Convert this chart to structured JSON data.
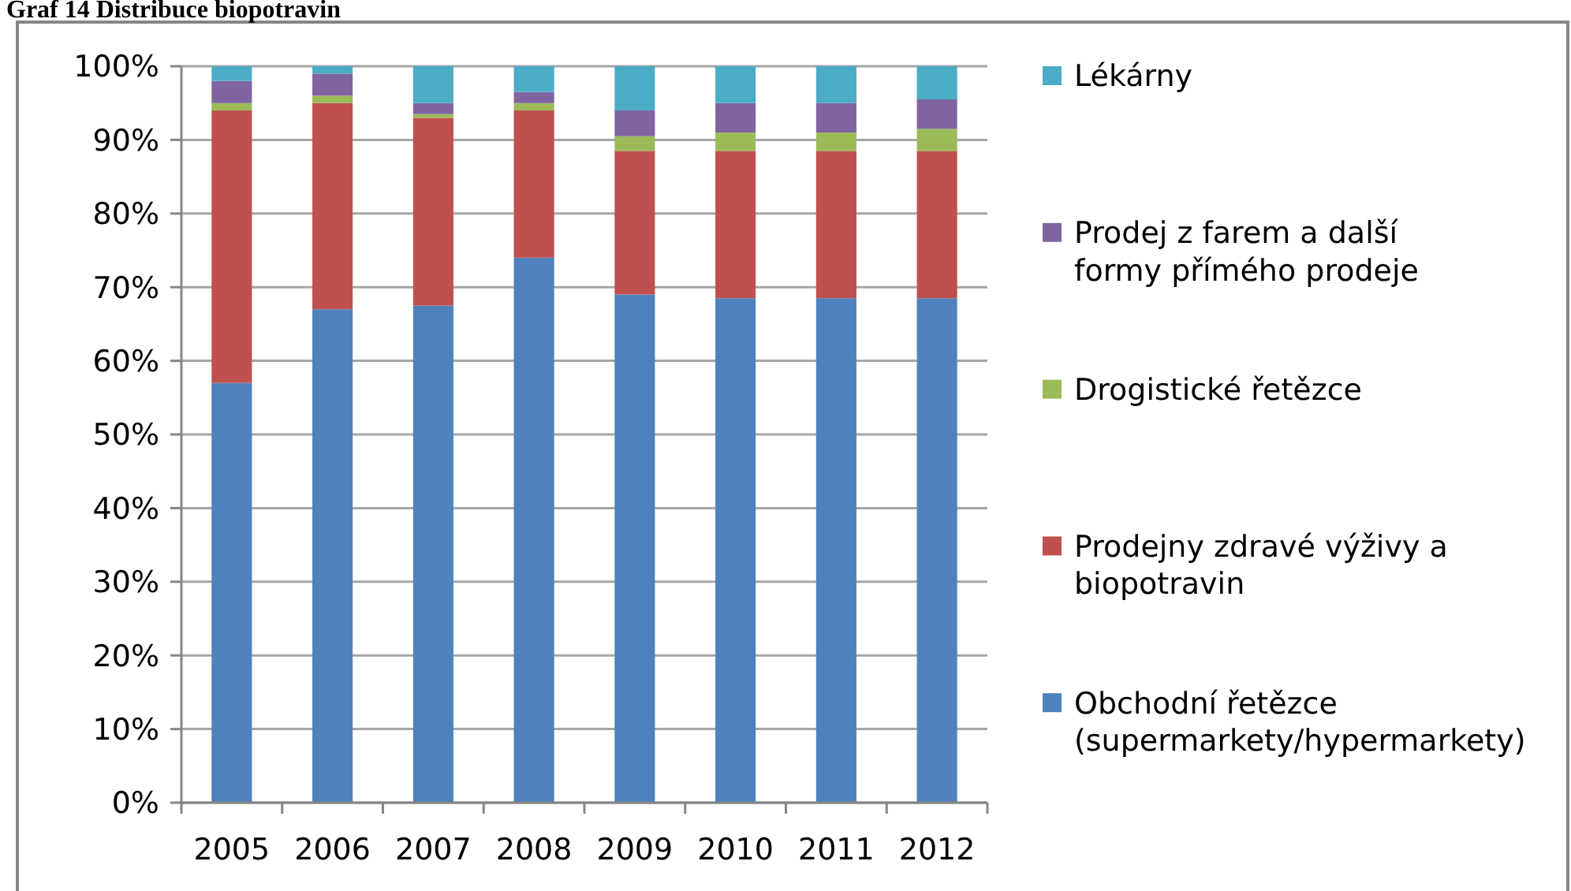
{
  "chart_data": {
    "type": "bar",
    "title": "Graf 14 Distribuce biopotravin",
    "stacked": true,
    "categories": [
      "2005",
      "2006",
      "2007",
      "2008",
      "2009",
      "2010",
      "2011",
      "2012"
    ],
    "series": [
      {
        "name": "Obchodní řetězce (supermarkety/hypermarkety)",
        "color": "#4f81bd",
        "values": [
          57,
          67,
          67.5,
          74,
          69,
          68.5,
          68.5,
          68.5
        ]
      },
      {
        "name": "Prodejny zdravé výživy a biopotravin",
        "color": "#c0504d",
        "values": [
          37,
          28,
          25.5,
          20,
          19.5,
          20,
          20,
          20
        ]
      },
      {
        "name": "Drogistické řetězce",
        "color": "#9bbb59",
        "values": [
          1,
          1,
          0.5,
          1,
          2,
          2.5,
          2.5,
          3
        ]
      },
      {
        "name": "Prodej z farem a další formy přímého prodeje",
        "color": "#8064a2",
        "values": [
          3,
          3,
          1.5,
          1.5,
          3.5,
          4,
          4,
          4
        ]
      },
      {
        "name": "Lékárny",
        "color": "#4bacc6",
        "values": [
          2,
          1,
          5,
          3.5,
          6,
          5,
          5,
          4.5
        ]
      }
    ],
    "ylim": [
      0,
      100
    ],
    "yticks": [
      {
        "value": 0,
        "label": "0%"
      },
      {
        "value": 10,
        "label": "10%"
      },
      {
        "value": 20,
        "label": "20%"
      },
      {
        "value": 30,
        "label": "30%"
      },
      {
        "value": 40,
        "label": "40%"
      },
      {
        "value": 50,
        "label": "50%"
      },
      {
        "value": 60,
        "label": "60%"
      },
      {
        "value": 70,
        "label": "70%"
      },
      {
        "value": 80,
        "label": "80%"
      },
      {
        "value": 90,
        "label": "90%"
      },
      {
        "value": 100,
        "label": "100%"
      }
    ],
    "grid": "y",
    "legend": "right"
  }
}
